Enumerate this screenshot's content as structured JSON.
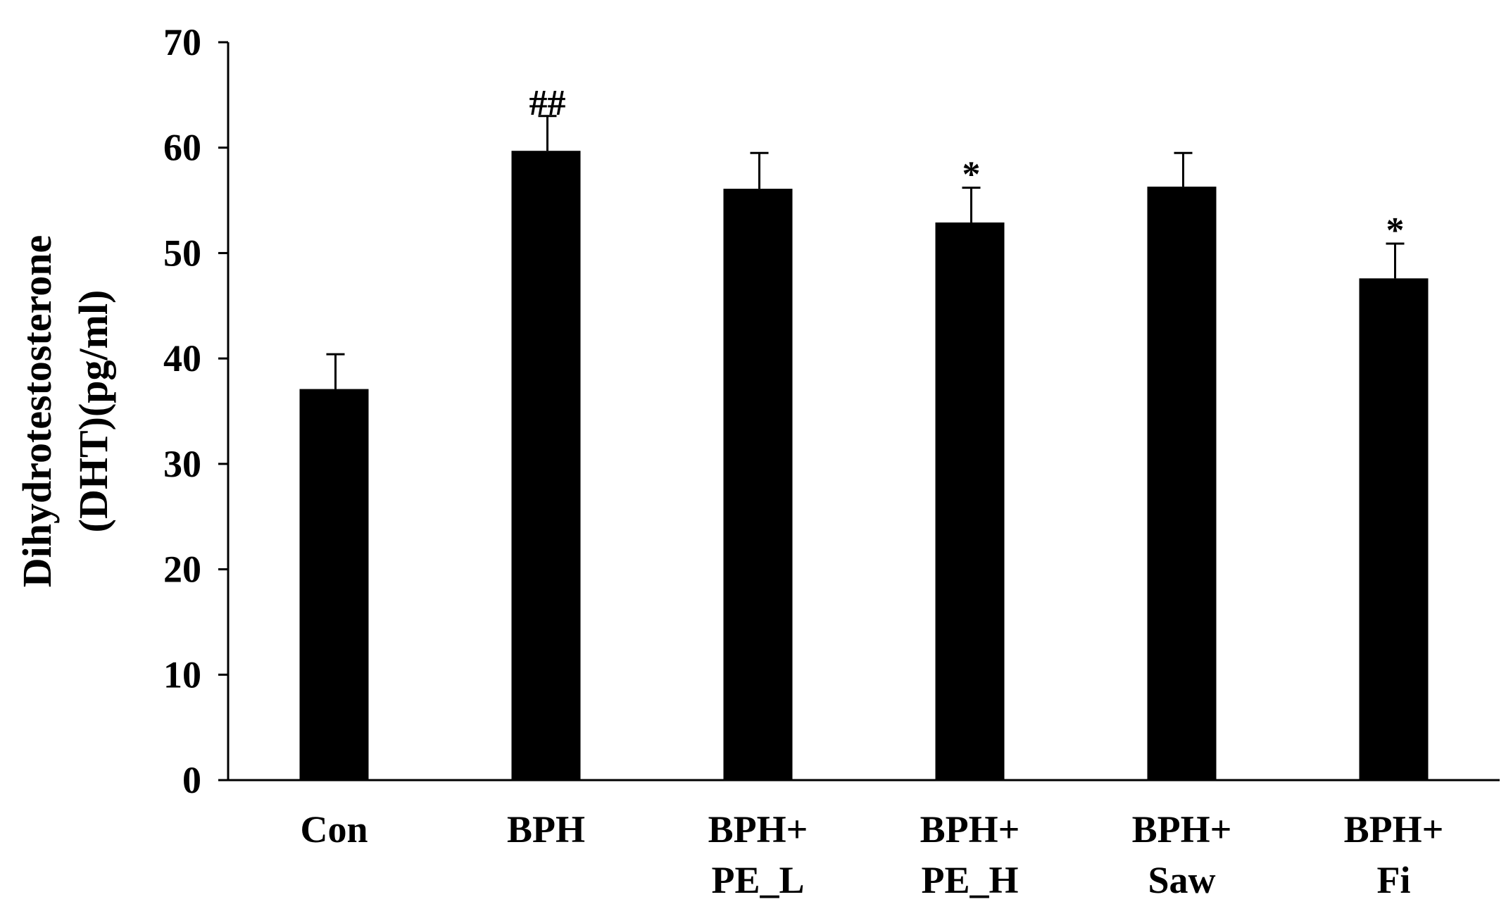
{
  "chart_data": {
    "type": "bar",
    "title": "",
    "xlabel": "",
    "ylabel_lines": [
      "Dihydrotestosterone",
      "(DHT)(pg/ml)"
    ],
    "ylim": [
      0,
      70
    ],
    "yticks": [
      0,
      10,
      20,
      30,
      40,
      50,
      60,
      70
    ],
    "grid": false,
    "bar_color": "#000000",
    "categories": [
      [
        "Con"
      ],
      [
        "BPH"
      ],
      [
        "BPH+",
        "PE_L"
      ],
      [
        "BPH+",
        "PE_H"
      ],
      [
        "BPH+",
        "Saw"
      ],
      [
        "BPH+",
        "Fi"
      ]
    ],
    "values": [
      37.1,
      59.7,
      56.1,
      52.9,
      56.3,
      47.6
    ],
    "errors": [
      3.3,
      3.3,
      3.4,
      3.3,
      3.2,
      3.3
    ],
    "annotations": [
      "",
      "##",
      "",
      "*",
      "",
      "*"
    ]
  }
}
